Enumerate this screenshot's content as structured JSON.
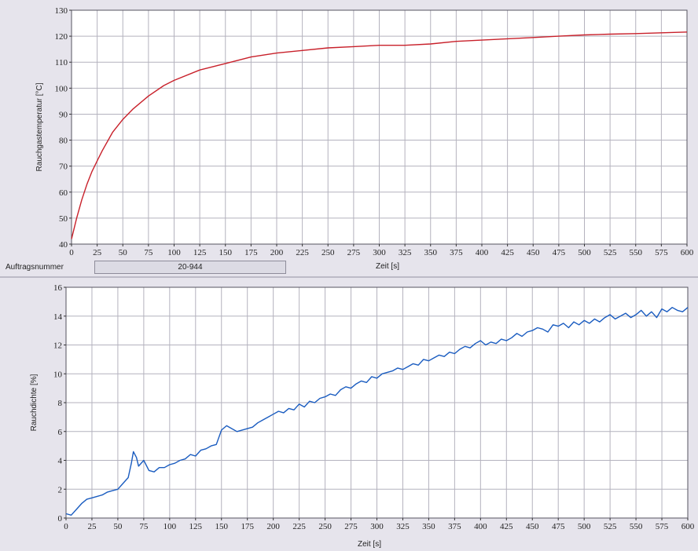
{
  "order": {
    "label": "Auftragsnummer",
    "value": "20-944"
  },
  "colors": {
    "background": "#e6e4ec",
    "grid": "#b4b2be",
    "temperature_line": "#c8202a",
    "density_line": "#1a5cc0"
  },
  "chart_data": [
    {
      "type": "line",
      "title": "",
      "xlabel": "Zeit [s]",
      "ylabel": "Rauchgastemperatur [°C]",
      "xlim": [
        0,
        600
      ],
      "ylim": [
        40,
        130
      ],
      "xticks": [
        0,
        25,
        50,
        75,
        100,
        125,
        150,
        175,
        200,
        225,
        250,
        275,
        300,
        325,
        350,
        375,
        400,
        425,
        450,
        475,
        500,
        525,
        550,
        575,
        600
      ],
      "yticks": [
        40,
        50,
        60,
        70,
        80,
        90,
        100,
        110,
        120,
        130
      ],
      "grid": true,
      "series": [
        {
          "color": "#c8202a",
          "x": [
            0,
            5,
            10,
            15,
            20,
            25,
            30,
            40,
            50,
            60,
            75,
            90,
            100,
            125,
            150,
            175,
            200,
            225,
            250,
            275,
            300,
            325,
            350,
            375,
            400,
            425,
            450,
            475,
            500,
            525,
            550,
            575,
            600
          ],
          "y": [
            42,
            50,
            57,
            63,
            68,
            72,
            76,
            83,
            88,
            92,
            97,
            101,
            103,
            107,
            109.5,
            112,
            113.5,
            114.5,
            115.5,
            116,
            116.5,
            116.5,
            117,
            118,
            118.5,
            119,
            119.5,
            120,
            120.5,
            120.8,
            121,
            121.3,
            121.6
          ]
        }
      ]
    },
    {
      "type": "line",
      "title": "",
      "xlabel": "Zeit [s]",
      "ylabel": "Rauchdichte [%]",
      "xlim": [
        0,
        600
      ],
      "ylim": [
        0,
        16
      ],
      "xticks": [
        0,
        25,
        50,
        75,
        100,
        125,
        150,
        175,
        200,
        225,
        250,
        275,
        300,
        325,
        350,
        375,
        400,
        425,
        450,
        475,
        500,
        525,
        550,
        575,
        600
      ],
      "yticks": [
        0,
        2,
        4,
        6,
        8,
        10,
        12,
        14,
        16
      ],
      "grid": true,
      "series": [
        {
          "color": "#1a5cc0",
          "x": [
            0,
            5,
            10,
            15,
            20,
            25,
            30,
            35,
            40,
            45,
            50,
            55,
            60,
            63,
            65,
            68,
            70,
            75,
            80,
            85,
            90,
            95,
            100,
            105,
            110,
            115,
            120,
            125,
            130,
            135,
            140,
            145,
            150,
            155,
            160,
            165,
            170,
            175,
            180,
            185,
            190,
            195,
            200,
            205,
            210,
            215,
            220,
            225,
            230,
            235,
            240,
            245,
            250,
            255,
            260,
            265,
            270,
            275,
            280,
            285,
            290,
            295,
            300,
            305,
            310,
            315,
            320,
            325,
            330,
            335,
            340,
            345,
            350,
            355,
            360,
            365,
            370,
            375,
            380,
            385,
            390,
            395,
            400,
            405,
            410,
            415,
            420,
            425,
            430,
            435,
            440,
            445,
            450,
            455,
            460,
            465,
            470,
            475,
            480,
            485,
            490,
            495,
            500,
            505,
            510,
            515,
            520,
            525,
            530,
            535,
            540,
            545,
            550,
            555,
            560,
            565,
            570,
            575,
            580,
            585,
            590,
            595,
            600
          ],
          "y": [
            0.3,
            0.2,
            0.6,
            1.0,
            1.3,
            1.4,
            1.5,
            1.6,
            1.8,
            1.9,
            2.0,
            2.4,
            2.8,
            3.8,
            4.6,
            4.2,
            3.6,
            4.0,
            3.3,
            3.2,
            3.5,
            3.5,
            3.7,
            3.8,
            4.0,
            4.1,
            4.4,
            4.3,
            4.7,
            4.8,
            5.0,
            5.1,
            6.1,
            6.4,
            6.2,
            6.0,
            6.1,
            6.2,
            6.3,
            6.6,
            6.8,
            7.0,
            7.2,
            7.4,
            7.3,
            7.6,
            7.5,
            7.9,
            7.7,
            8.1,
            8.0,
            8.3,
            8.4,
            8.6,
            8.5,
            8.9,
            9.1,
            9.0,
            9.3,
            9.5,
            9.4,
            9.8,
            9.7,
            10.0,
            10.1,
            10.2,
            10.4,
            10.3,
            10.5,
            10.7,
            10.6,
            11.0,
            10.9,
            11.1,
            11.3,
            11.2,
            11.5,
            11.4,
            11.7,
            11.9,
            11.8,
            12.1,
            12.3,
            12.0,
            12.2,
            12.1,
            12.4,
            12.3,
            12.5,
            12.8,
            12.6,
            12.9,
            13.0,
            13.2,
            13.1,
            12.9,
            13.4,
            13.3,
            13.5,
            13.2,
            13.6,
            13.4,
            13.7,
            13.5,
            13.8,
            13.6,
            13.9,
            14.1,
            13.8,
            14.0,
            14.2,
            13.9,
            14.1,
            14.4,
            14.0,
            14.3,
            13.9,
            14.5,
            14.3,
            14.6,
            14.4,
            14.3,
            14.6
          ]
        }
      ]
    }
  ]
}
